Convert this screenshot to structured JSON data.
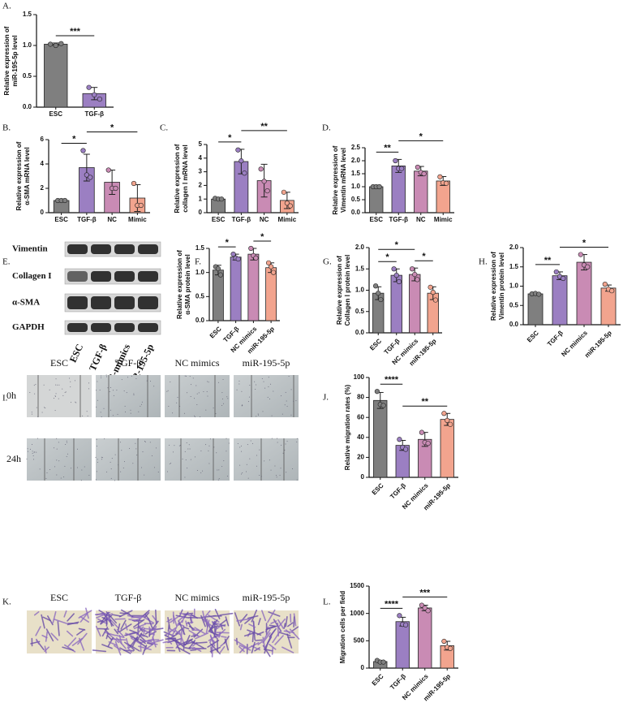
{
  "chart_data": [
    {
      "type": "bar",
      "panel": "A.",
      "ylabel": [
        "Relative expression of",
        "miR-195-5p level"
      ],
      "categories": [
        "ESC",
        "TGF-β"
      ],
      "values": [
        1.02,
        0.22
      ],
      "errors": [
        0.02,
        0.1
      ],
      "points": [
        [
          1.02,
          1.0,
          1.03
        ],
        [
          0.32,
          0.2,
          0.13
        ]
      ],
      "colors": [
        "#7f7f7f",
        "#9b7fc2"
      ],
      "ylim": [
        0,
        1.5
      ],
      "yticks": [
        {
          "value": 0,
          "label": "0.0"
        },
        0.5,
        {
          "value": 1,
          "label": "1.0"
        },
        1.5
      ],
      "significance": [
        {
          "from": "ESC",
          "to": "TGF-β",
          "label": "***"
        }
      ]
    },
    {
      "type": "bar",
      "panel": "B.",
      "ylabel": [
        "Relative expression of",
        "α-SMA mRNA level"
      ],
      "categories": [
        "ESC",
        "TGF-β",
        "NC",
        "Mimic"
      ],
      "values": [
        1.0,
        3.7,
        2.5,
        1.2
      ],
      "errors": [
        0.05,
        1.1,
        1.0,
        1.1
      ],
      "points": [
        [
          1.0,
          1.0,
          1.0
        ],
        [
          5.1,
          3.1,
          2.9
        ],
        [
          3.5,
          2.0,
          2.0
        ],
        [
          2.4,
          0.6,
          0.6
        ]
      ],
      "colors": [
        "#7f7f7f",
        "#9b7fc2",
        "#c98bb4",
        "#f2a48e"
      ],
      "ylim": [
        0,
        6
      ],
      "yticks": [
        0,
        2,
        4,
        6
      ],
      "significance": [
        {
          "from": "ESC",
          "to": "TGF-β",
          "label": "*"
        },
        {
          "from": "TGF-β",
          "to": "Mimic",
          "label": "*"
        }
      ]
    },
    {
      "type": "bar",
      "panel": "C.",
      "ylabel": [
        "Relative expression of",
        "collagen Ⅰ mRNA level"
      ],
      "categories": [
        "ESC",
        "TGF-β",
        "NC",
        "Mimic"
      ],
      "values": [
        1.0,
        3.75,
        2.35,
        0.9
      ],
      "errors": [
        0.05,
        0.9,
        1.2,
        0.6
      ],
      "points": [
        [
          1.05,
          1.0,
          1.0
        ],
        [
          4.6,
          3.8,
          2.9
        ],
        [
          3.2,
          2.3,
          1.6
        ],
        [
          1.5,
          0.7,
          0.5
        ]
      ],
      "colors": [
        "#7f7f7f",
        "#9b7fc2",
        "#c98bb4",
        "#f2a48e"
      ],
      "ylim": [
        0,
        5
      ],
      "yticks": [
        0,
        1,
        2,
        3,
        4,
        5
      ],
      "significance": [
        {
          "from": "ESC",
          "to": "TGF-β",
          "label": "*"
        },
        {
          "from": "TGF-β",
          "to": "Mimic",
          "label": "**"
        }
      ]
    },
    {
      "type": "bar",
      "panel": "D.",
      "ylabel": [
        "Relative expression of",
        "Vimentin mRNA level"
      ],
      "categories": [
        "ESC",
        "TGF-β",
        "NC",
        "Mimic"
      ],
      "values": [
        1.0,
        1.8,
        1.6,
        1.22
      ],
      "errors": [
        0.02,
        0.25,
        0.18,
        0.17
      ],
      "points": [
        [
          1.0,
          1.0,
          1.0
        ],
        [
          2.0,
          1.7,
          1.7
        ],
        [
          1.75,
          1.55,
          1.5
        ],
        [
          1.38,
          1.15,
          1.13
        ]
      ],
      "colors": [
        "#7f7f7f",
        "#9b7fc2",
        "#c98bb4",
        "#f2a48e"
      ],
      "ylim": [
        0,
        2.5
      ],
      "yticks": [
        {
          "value": 0,
          "label": "0.0"
        },
        0.5,
        {
          "value": 1,
          "label": "1.0"
        },
        1.5,
        {
          "value": 2,
          "label": "2.0"
        },
        2.5
      ],
      "significance": [
        {
          "from": "ESC",
          "to": "TGF-β",
          "label": "**"
        },
        {
          "from": "TGF-β",
          "to": "Mimic",
          "label": "*"
        }
      ]
    },
    {
      "type": "bar",
      "panel": "F.",
      "ylabel": [
        "Relative expression of",
        "α-SMA protein level"
      ],
      "categories": [
        "ESC",
        "TGF-β",
        "NC mimics",
        "miR-195-5p"
      ],
      "values": [
        1.05,
        1.32,
        1.38,
        1.1
      ],
      "errors": [
        0.1,
        0.06,
        0.12,
        0.1
      ],
      "points": [
        [
          1.12,
          1.08,
          0.95
        ],
        [
          1.38,
          1.3,
          1.28
        ],
        [
          1.5,
          1.35,
          1.3
        ],
        [
          1.2,
          1.12,
          1.0
        ]
      ],
      "colors": [
        "#7f7f7f",
        "#9b7fc2",
        "#c98bb4",
        "#f2a48e"
      ],
      "ylim": [
        0,
        1.5
      ],
      "yticks": [
        {
          "value": 0,
          "label": "0.0"
        },
        0.5,
        {
          "value": 1,
          "label": "1.0"
        },
        1.5
      ],
      "significance": [
        {
          "from": "ESC",
          "to": "TGF-β",
          "label": "*"
        },
        {
          "from": "NC mimics",
          "to": "miR-195-5p",
          "label": "*"
        }
      ]
    },
    {
      "type": "bar",
      "panel": "G.",
      "ylabel": [
        "Relative expression of",
        "Collagen Ⅰ protein level"
      ],
      "categories": [
        "ESC",
        "TGF-β",
        "NC mimics",
        "miR-195-5p"
      ],
      "values": [
        0.93,
        1.35,
        1.37,
        0.93
      ],
      "errors": [
        0.15,
        0.15,
        0.15,
        0.15
      ],
      "points": [
        [
          1.1,
          0.93,
          0.78
        ],
        [
          1.5,
          1.35,
          1.2
        ],
        [
          1.5,
          1.37,
          1.25
        ],
        [
          1.07,
          0.95,
          0.77
        ]
      ],
      "colors": [
        "#7f7f7f",
        "#9b7fc2",
        "#c98bb4",
        "#f2a48e"
      ],
      "ylim": [
        0,
        2
      ],
      "yticks": [
        {
          "value": 0,
          "label": "0.0"
        },
        0.5,
        {
          "value": 1,
          "label": "1.0"
        },
        1.5,
        {
          "value": 2,
          "label": "2.0"
        }
      ],
      "significance": [
        {
          "from": "ESC",
          "to": "TGF-β",
          "label": "*"
        },
        {
          "from": "NC mimics",
          "to": "miR-195-5p",
          "label": "*"
        },
        {
          "from": "ESC",
          "to": "NC mimics",
          "label": "*"
        }
      ]
    },
    {
      "type": "bar",
      "panel": "H.",
      "ylabel": [
        "Relative expression of",
        "Vimentin protein level"
      ],
      "categories": [
        "ESC",
        "TGF-β",
        "NC mimics",
        "miR-195-5p"
      ],
      "values": [
        0.8,
        1.27,
        1.62,
        0.95
      ],
      "errors": [
        0.02,
        0.1,
        0.2,
        0.08
      ],
      "points": [
        [
          0.8,
          0.81,
          0.79
        ],
        [
          1.37,
          1.25,
          1.2
        ],
        [
          1.82,
          1.55,
          1.5
        ],
        [
          1.05,
          0.92,
          0.88
        ]
      ],
      "colors": [
        "#7f7f7f",
        "#9b7fc2",
        "#c98bb4",
        "#f2a48e"
      ],
      "ylim": [
        0,
        2
      ],
      "yticks": [
        {
          "value": 0,
          "label": "0.0"
        },
        0.5,
        {
          "value": 1,
          "label": "1.0"
        },
        1.5,
        {
          "value": 2,
          "label": "2.0"
        }
      ],
      "significance": [
        {
          "from": "ESC",
          "to": "TGF-β",
          "label": "**"
        },
        {
          "from": "TGF-β",
          "to": "miR-195-5p",
          "label": "*"
        }
      ]
    },
    {
      "type": "bar",
      "panel": "J.",
      "ylabel": [
        "Relative migration rates (%)"
      ],
      "categories": [
        "ESC",
        "TGF-β",
        "NC mimics",
        "miR-195-5p"
      ],
      "values": [
        77,
        32,
        38,
        58
      ],
      "errors": [
        8,
        5,
        7,
        6
      ],
      "points": [
        [
          86,
          73,
          72
        ],
        [
          38,
          30,
          28
        ],
        [
          45,
          35,
          34
        ],
        [
          64,
          57,
          53
        ]
      ],
      "colors": [
        "#7f7f7f",
        "#9b7fc2",
        "#c98bb4",
        "#f2a48e"
      ],
      "ylim": [
        0,
        100
      ],
      "yticks": [
        0,
        20,
        40,
        60,
        80,
        100
      ],
      "significance": [
        {
          "from": "ESC",
          "to": "TGF-β",
          "label": "****"
        },
        {
          "from": "TGF-β",
          "to": "miR-195-5p",
          "label": "**"
        }
      ]
    },
    {
      "type": "bar",
      "panel": "L.",
      "ylabel": [
        "Migration cells per field"
      ],
      "categories": [
        "ESC",
        "TGF-β",
        "NC mimics",
        "miR-195-5p"
      ],
      "values": [
        120,
        850,
        1100,
        410
      ],
      "errors": [
        20,
        80,
        50,
        80
      ],
      "points": [
        [
          140,
          110,
          110
        ],
        [
          960,
          800,
          790
        ],
        [
          1150,
          1100,
          1050
        ],
        [
          490,
          380,
          360
        ]
      ],
      "colors": [
        "#7f7f7f",
        "#9b7fc2",
        "#c98bb4",
        "#f2a48e"
      ],
      "ylim": [
        0,
        1500
      ],
      "yticks": [
        0,
        500,
        1000,
        1500
      ],
      "significance": [
        {
          "from": "ESC",
          "to": "TGF-β",
          "label": "****"
        },
        {
          "from": "TGF-β",
          "to": "miR-195-5p",
          "label": "***"
        }
      ]
    }
  ],
  "blot": {
    "panel": "E.",
    "proteins": [
      "Vimentin",
      "Collagen I",
      "α-SMA",
      "GAPDH"
    ],
    "lanes": [
      "ESC",
      "TGF-β",
      "NC-mimics",
      "miR-195-5p"
    ]
  },
  "wound": {
    "panel": "I.",
    "groups": [
      "ESC",
      "TGF-β",
      "NC mimics",
      "miR-195-5p"
    ],
    "times": [
      "0h",
      "24h"
    ]
  },
  "transwell": {
    "panel": "K.",
    "groups": [
      "ESC",
      "TGF-β",
      "NC mimics",
      "miR-195-5p"
    ]
  }
}
